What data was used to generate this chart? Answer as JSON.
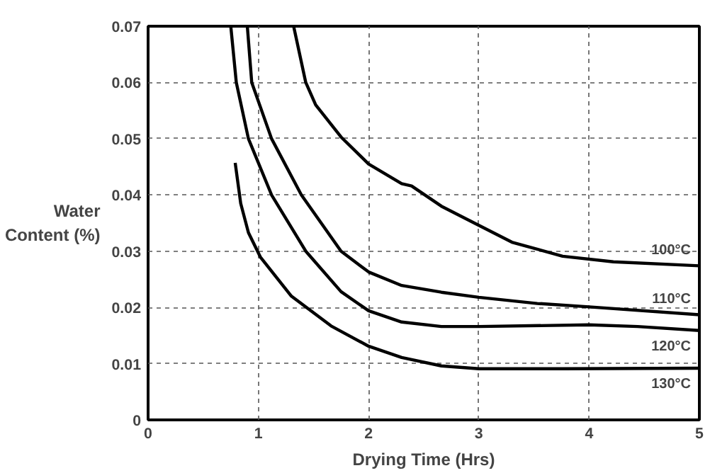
{
  "chart_data": {
    "type": "line",
    "xlabel": "Drying Time (Hrs)",
    "ylabel": "Water\nContent (%)",
    "xlim": [
      0,
      5
    ],
    "ylim": [
      0,
      0.07
    ],
    "xticks": [
      0,
      1,
      2,
      3,
      4,
      5
    ],
    "yticks": [
      0,
      0.01,
      0.02,
      0.03,
      0.04,
      0.05,
      0.06,
      0.07
    ],
    "grid": true,
    "marker": "none",
    "line_style": "solid",
    "series": [
      {
        "name": "100°C",
        "color": "#000000",
        "x": [
          1.32,
          1.43,
          1.52,
          1.75,
          2.0,
          2.3,
          2.39,
          2.66,
          3.0,
          3.3,
          3.76,
          4.22,
          5.0
        ],
        "values": [
          0.07,
          0.06,
          0.056,
          0.0503,
          0.0455,
          0.042,
          0.0416,
          0.038,
          0.0346,
          0.0316,
          0.0291,
          0.0281,
          0.0274
        ]
      },
      {
        "name": "110°C",
        "color": "#000000",
        "x": [
          0.9,
          0.94,
          1.12,
          1.39,
          1.75,
          2.0,
          2.3,
          2.66,
          3.0,
          3.53,
          4.0,
          5.0
        ],
        "values": [
          0.07,
          0.06,
          0.05,
          0.04,
          0.03,
          0.0263,
          0.0239,
          0.0227,
          0.0218,
          0.0207,
          0.0201,
          0.0187
        ]
      },
      {
        "name": "120°C",
        "color": "#000000",
        "x": [
          0.75,
          0.8,
          0.91,
          1.12,
          1.43,
          1.75,
          2.0,
          2.3,
          2.66,
          3.0,
          4.0,
          4.44,
          5.0
        ],
        "values": [
          0.07,
          0.06,
          0.05,
          0.04,
          0.03,
          0.0228,
          0.0194,
          0.0174,
          0.0166,
          0.0166,
          0.0169,
          0.0166,
          0.0159
        ]
      },
      {
        "name": "130°C",
        "color": "#000000",
        "x": [
          0.79,
          0.84,
          0.91,
          1.02,
          1.3,
          1.66,
          2.0,
          2.3,
          2.66,
          3.0,
          3.76,
          5.0
        ],
        "values": [
          0.0457,
          0.0385,
          0.0333,
          0.0289,
          0.022,
          0.0167,
          0.0131,
          0.0111,
          0.0096,
          0.0091,
          0.0091,
          0.0092
        ]
      }
    ]
  }
}
